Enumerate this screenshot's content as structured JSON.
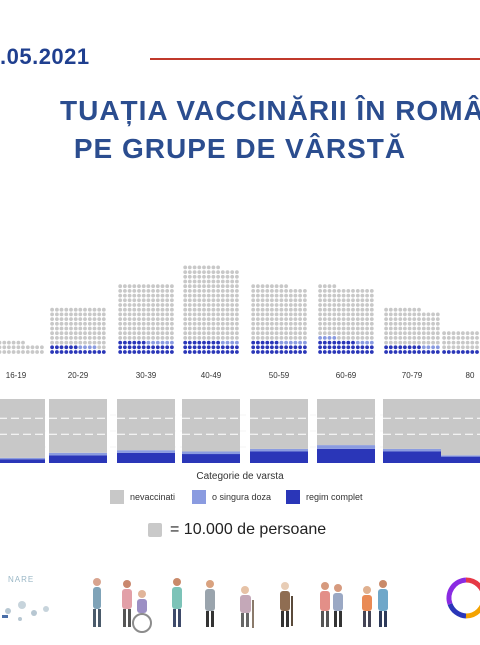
{
  "header": {
    "date": ".05.2021",
    "title_line1": "TUAȚIA VACCINĂRII ÎN ROMÂN",
    "title_line2": "PE GRUPE DE VÂRSTĂ"
  },
  "colors": {
    "nevaccinati": "#c8c8c8",
    "o_singura_doza": "#8a9be0",
    "regim_complet": "#2a36b8",
    "title": "#2b4d8f",
    "date": "#1f3f8f"
  },
  "chart_data": [
    {
      "type": "bar",
      "subtype": "dot-matrix stacked",
      "unit": "10.000 de persoane per dot",
      "categories": [
        "16-19",
        "20-29",
        "30-39",
        "40-49",
        "50-59",
        "60-69",
        "70-79",
        "80"
      ],
      "series": [
        {
          "name": "regim complet",
          "values": [
            2,
            18,
            30,
            32,
            30,
            32,
            20,
            8
          ]
        },
        {
          "name": "o singura doza",
          "values": [
            0,
            4,
            6,
            4,
            6,
            8,
            4,
            2
          ]
        },
        {
          "name": "nevaccinati",
          "values": [
            30,
            98,
            144,
            188,
            140,
            132,
            92,
            48
          ]
        }
      ],
      "xlabel": "",
      "ylabel": ""
    },
    {
      "type": "bar",
      "subtype": "100% stacked",
      "categories": [
        "16-19",
        "20-29",
        "30-39",
        "40-49",
        "50-59",
        "60-69",
        "70-79",
        "80"
      ],
      "series": [
        {
          "name": "regim complet",
          "values": [
            6,
            12,
            16,
            14,
            18,
            22,
            18,
            10
          ]
        },
        {
          "name": "o singura doza",
          "values": [
            2,
            4,
            4,
            4,
            4,
            6,
            4,
            2
          ]
        },
        {
          "name": "nevaccinati",
          "values": [
            92,
            84,
            80,
            82,
            78,
            72,
            78,
            88
          ]
        }
      ],
      "xlabel": "Categorie de varsta",
      "ylabel": "",
      "ylim": [
        0,
        100
      ]
    }
  ],
  "legend": {
    "nevaccinati": "nevaccinati",
    "o_singura_doza": "o singura doza",
    "regim_complet": "regim complet"
  },
  "dot_key": "= 10.000 de persoane",
  "logos": {
    "left_text": "NARE"
  }
}
